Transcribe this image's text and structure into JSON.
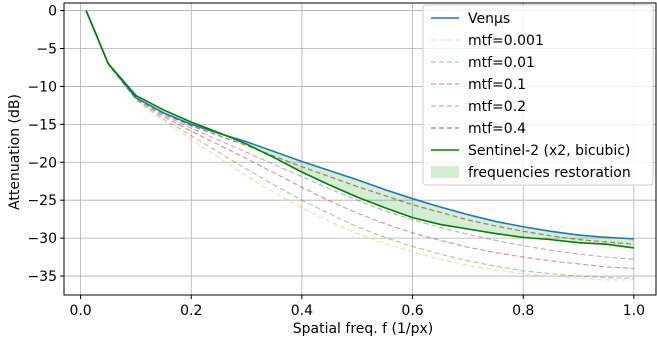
{
  "chart_data": {
    "type": "line",
    "xlabel": "Spatial freq. f (1/px)",
    "ylabel": "Attenuation (dB)",
    "xlim": [
      -0.03,
      1.04
    ],
    "ylim": [
      -37.5,
      1
    ],
    "xticks": [
      0.0,
      0.2,
      0.4,
      0.6,
      0.8,
      1.0
    ],
    "xtick_labels": [
      "0.0",
      "0.2",
      "0.4",
      "0.6",
      "0.8",
      "1.0"
    ],
    "yticks": [
      0,
      -5,
      -10,
      -15,
      -20,
      -25,
      -30,
      -35
    ],
    "ytick_labels": [
      "0",
      "−5",
      "−10",
      "−15",
      "−20",
      "−25",
      "−30",
      "−35"
    ],
    "grid": true,
    "legend_position": "top-right",
    "x": [
      0.01,
      0.05,
      0.1,
      0.15,
      0.2,
      0.25,
      0.3,
      0.35,
      0.4,
      0.45,
      0.5,
      0.55,
      0.6,
      0.65,
      0.7,
      0.75,
      0.8,
      0.85,
      0.9,
      0.95,
      1.0
    ],
    "series": [
      {
        "name": "Venµs",
        "color": "#1f77b4",
        "dash": "solid",
        "width": 1.6,
        "values": [
          0,
          -7.0,
          -11.5,
          -13.5,
          -15.0,
          -16.2,
          -17.3,
          -18.6,
          -19.9,
          -21.1,
          -22.3,
          -23.6,
          -24.8,
          -25.9,
          -26.9,
          -27.8,
          -28.5,
          -29.1,
          -29.6,
          -29.9,
          -30.1
        ]
      },
      {
        "name": "mtf=0.001",
        "color": "#ffbb78",
        "dash": "dashed",
        "width": 1.2,
        "opacity": 0.55,
        "values": [
          0,
          -7.1,
          -11.8,
          -14.6,
          -17.0,
          -19.4,
          -21.8,
          -24.0,
          -26.0,
          -27.8,
          -29.4,
          -30.7,
          -31.8,
          -32.8,
          -33.6,
          -34.2,
          -34.7,
          -35.0,
          -35.3,
          -35.5,
          -35.5
        ]
      },
      {
        "name": "mtf=0.01",
        "color": "#2ca02c",
        "dash": "dashed",
        "width": 1.2,
        "opacity": 0.45,
        "values": [
          0,
          -7.1,
          -11.7,
          -14.3,
          -16.5,
          -18.7,
          -20.9,
          -23.0,
          -25.0,
          -26.8,
          -28.5,
          -29.9,
          -31.1,
          -32.1,
          -33.0,
          -33.7,
          -34.3,
          -34.7,
          -35.0,
          -35.2,
          -35.3
        ]
      },
      {
        "name": "mtf=0.1",
        "color": "#d62728",
        "dash": "dashed",
        "width": 1.2,
        "opacity": 0.5,
        "values": [
          0,
          -7.0,
          -11.6,
          -14.0,
          -15.9,
          -17.7,
          -19.5,
          -21.4,
          -23.3,
          -25.1,
          -26.7,
          -28.1,
          -29.3,
          -30.3,
          -31.2,
          -31.9,
          -32.5,
          -33.0,
          -33.4,
          -33.8,
          -34.0
        ]
      },
      {
        "name": "mtf=0.2",
        "color": "#9467bd",
        "dash": "dashed",
        "width": 1.2,
        "opacity": 0.55,
        "values": [
          0,
          -7.0,
          -11.5,
          -13.8,
          -15.5,
          -17.1,
          -18.7,
          -20.3,
          -21.9,
          -23.5,
          -25.0,
          -26.4,
          -27.6,
          -28.6,
          -29.5,
          -30.3,
          -31.0,
          -31.6,
          -32.1,
          -32.5,
          -32.8
        ]
      },
      {
        "name": "mtf=0.4",
        "color": "#8c564b",
        "dash": "dashed",
        "width": 1.2,
        "opacity": 0.75,
        "values": [
          0,
          -7.0,
          -11.5,
          -13.6,
          -15.2,
          -16.5,
          -17.8,
          -19.2,
          -20.6,
          -21.9,
          -23.2,
          -24.4,
          -25.6,
          -26.6,
          -27.6,
          -28.4,
          -29.1,
          -29.7,
          -30.2,
          -30.5,
          -30.8
        ]
      },
      {
        "name": "Sentinel-2 (x2, bicubic)",
        "color": "#008000",
        "dash": "solid",
        "width": 1.6,
        "values": [
          0,
          -7.0,
          -11.2,
          -13.1,
          -14.7,
          -16.1,
          -17.6,
          -19.4,
          -21.3,
          -23.0,
          -24.6,
          -26.0,
          -27.3,
          -28.2,
          -28.8,
          -29.4,
          -29.9,
          -30.2,
          -30.6,
          -30.8,
          -31.3
        ]
      }
    ],
    "fill_between": {
      "name": "frequencies restoration",
      "color": "#2ca02c",
      "opacity": 0.2,
      "upper": "Venµs",
      "lower": "Sentinel-2 (x2, bicubic)"
    }
  }
}
